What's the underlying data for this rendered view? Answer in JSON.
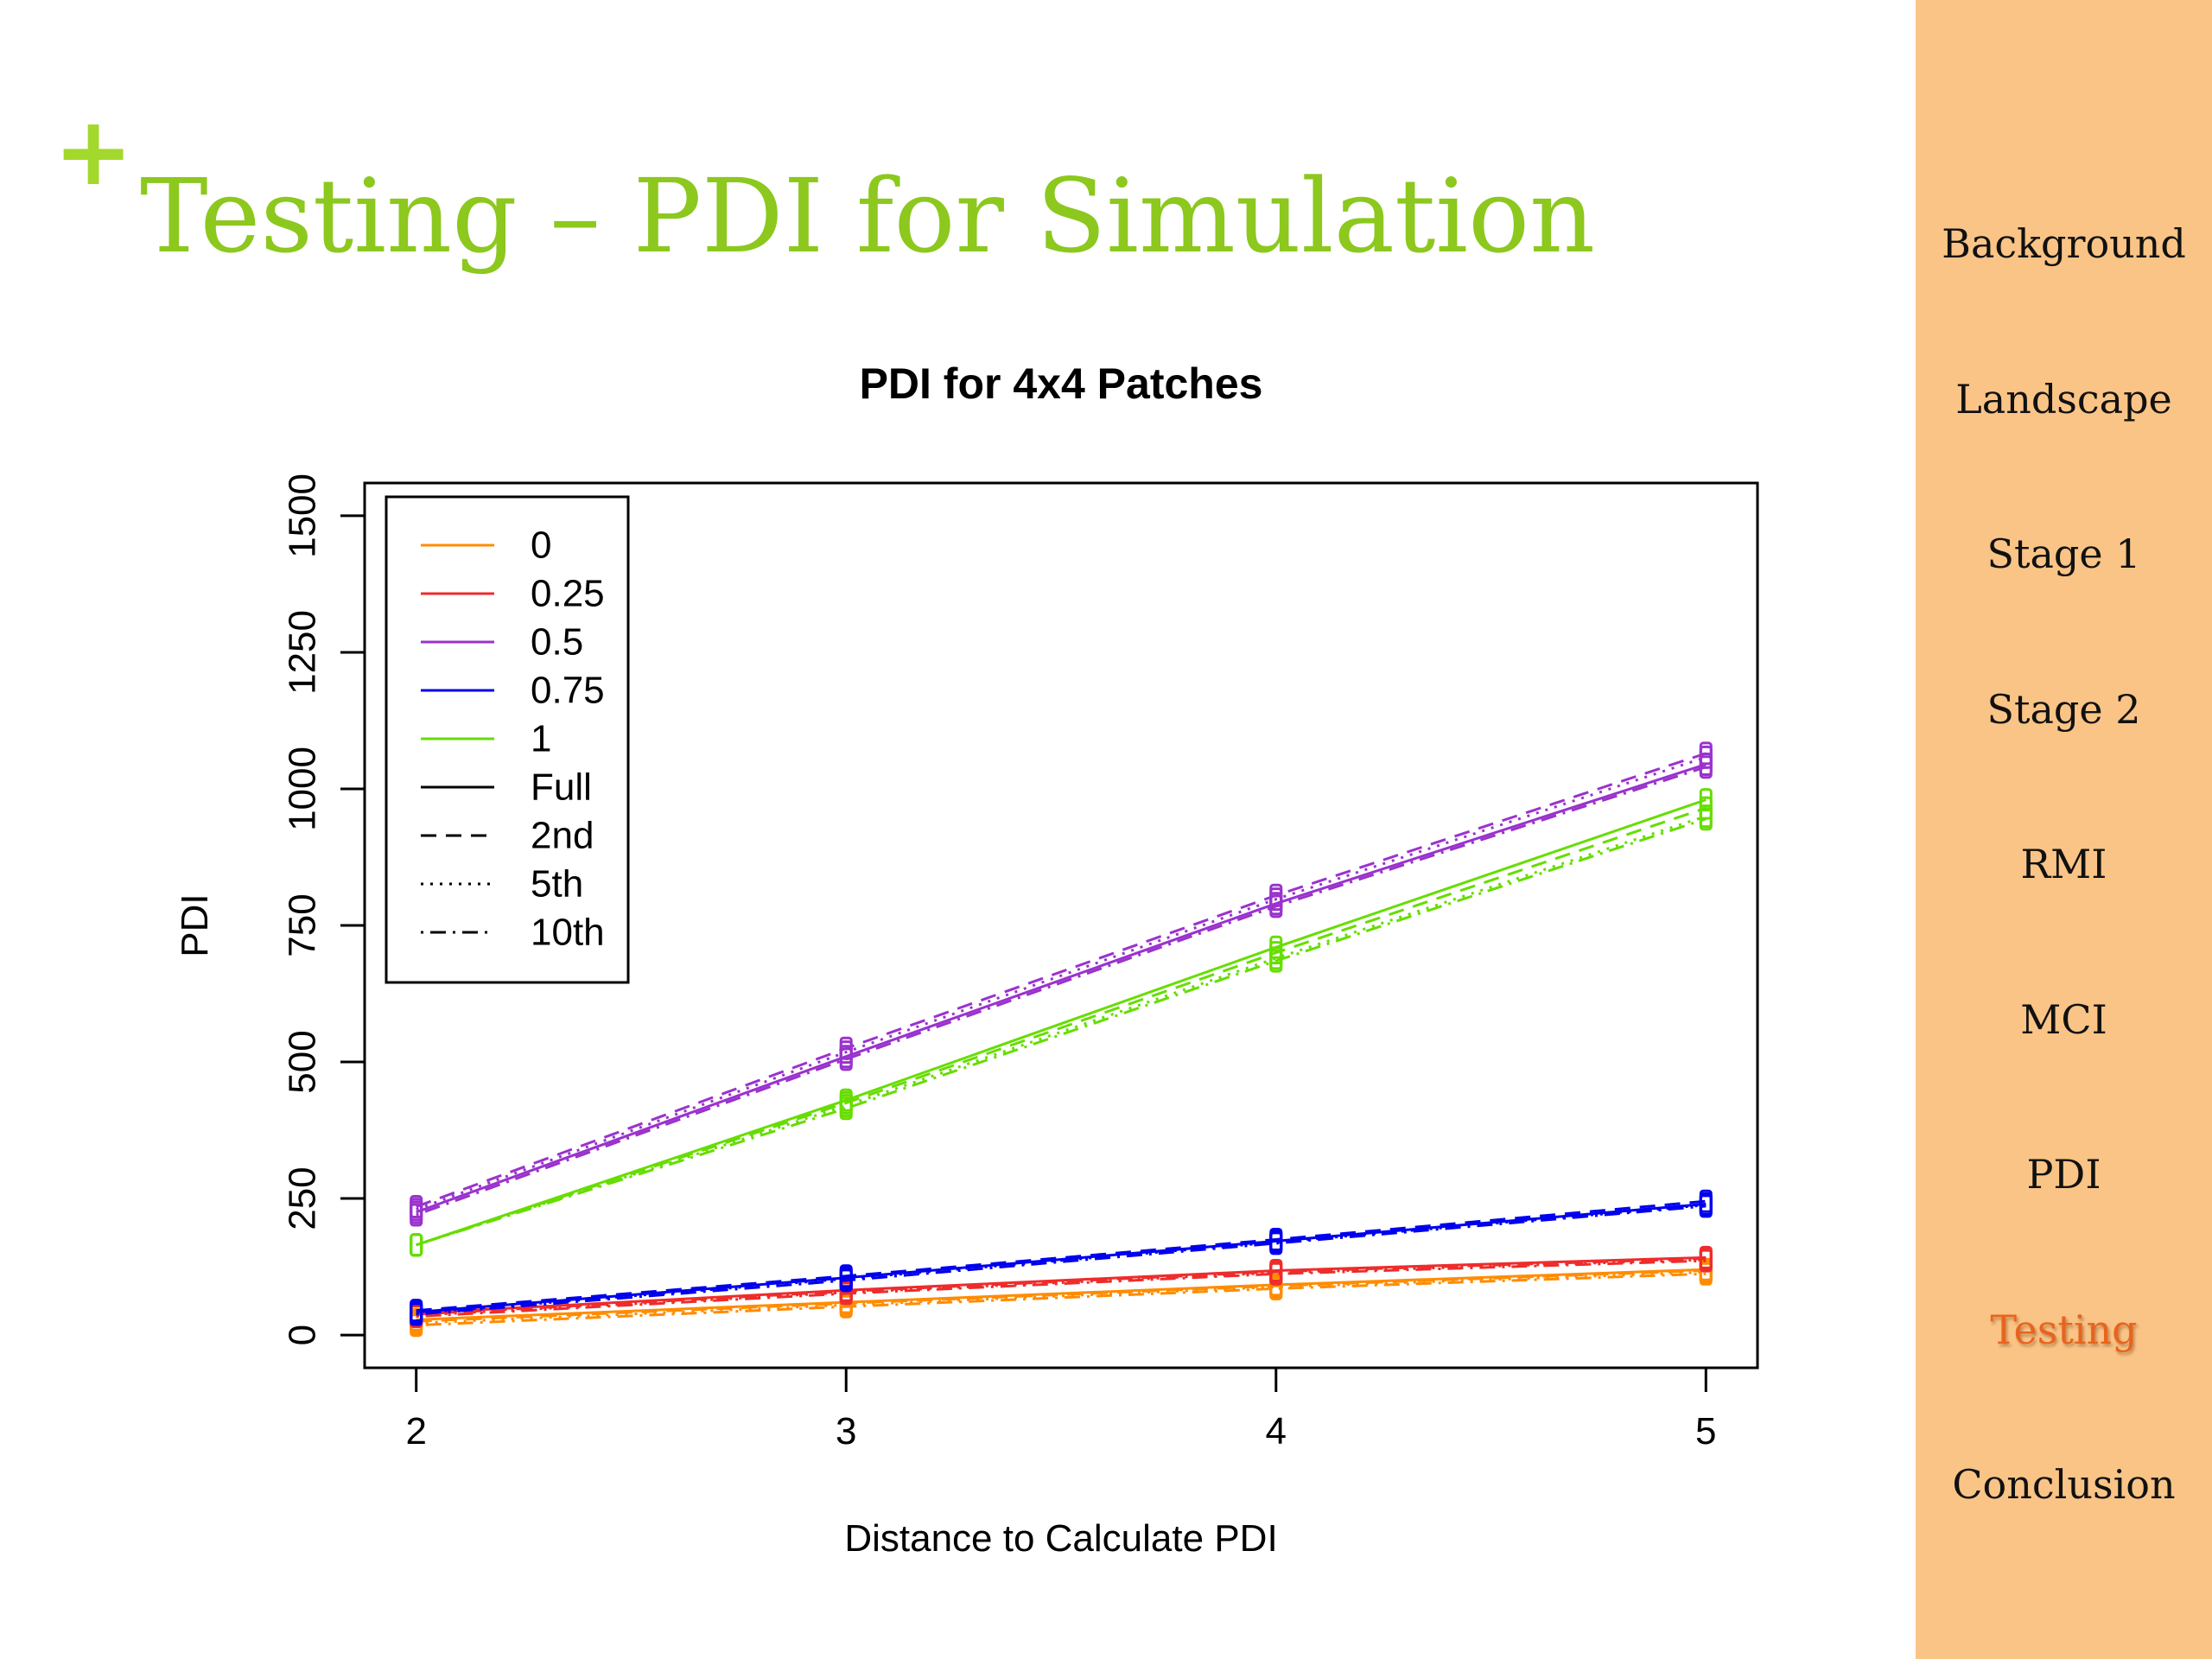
{
  "slide": {
    "marker": "+",
    "title": "Testing – PDI for Simulation"
  },
  "nav": {
    "items": [
      {
        "label": "Background",
        "active": false
      },
      {
        "label": "Landscape",
        "active": false
      },
      {
        "label": "Stage 1",
        "active": false
      },
      {
        "label": "Stage 2",
        "active": false
      },
      {
        "label": "RMI",
        "active": false
      },
      {
        "label": "MCI",
        "active": false
      },
      {
        "label": "PDI",
        "active": false
      },
      {
        "label": "Testing",
        "active": true
      },
      {
        "label": "Conclusion",
        "active": false
      }
    ],
    "active_color": "#e8641e",
    "background": "#f9c486"
  },
  "accent_color": "#8cc81e",
  "chart_data": {
    "type": "line",
    "title": "PDI for 4x4 Patches",
    "xlabel": "Distance to Calculate PDI",
    "ylabel": "PDI",
    "x": [
      2,
      3,
      4,
      5
    ],
    "xticks": [
      "2",
      "3",
      "4",
      "5"
    ],
    "yticks": [
      "0",
      "250",
      "500",
      "750",
      "1000",
      "1250",
      "1500"
    ],
    "ytick_values": [
      0,
      250,
      500,
      750,
      1000,
      1250,
      1500
    ],
    "xlim": [
      1.88,
      5.12
    ],
    "ylim": [
      -60,
      1560
    ],
    "grid": false,
    "legend_position": "top-left",
    "color_legend": [
      {
        "label": "0",
        "color": "#ff8c00"
      },
      {
        "label": "0.25",
        "color": "#ee2c2c"
      },
      {
        "label": "0.5",
        "color": "#9a32cd"
      },
      {
        "label": "0.75",
        "color": "#0000ee"
      },
      {
        "label": "1",
        "color": "#66dd00"
      }
    ],
    "style_legend": [
      {
        "label": "Full",
        "dash": "solid"
      },
      {
        "label": "2nd",
        "dash": "dashed"
      },
      {
        "label": "5th",
        "dash": "dotted"
      },
      {
        "label": "10th",
        "dash": "dotdash"
      }
    ],
    "series": [
      {
        "group": "0",
        "style": "Full",
        "color": "#ff8c00",
        "dash": "solid",
        "values": [
          28,
          60,
          92,
          120
        ]
      },
      {
        "group": "0",
        "style": "2nd",
        "color": "#ff8c00",
        "dash": "dashed",
        "values": [
          25,
          58,
          90,
          118
        ]
      },
      {
        "group": "0",
        "style": "5th",
        "color": "#ff8c00",
        "dash": "dotted",
        "values": [
          22,
          55,
          88,
          115
        ]
      },
      {
        "group": "0",
        "style": "10th",
        "color": "#ff8c00",
        "dash": "dotdash",
        "values": [
          18,
          52,
          85,
          112
        ]
      },
      {
        "group": "0.25",
        "style": "Full",
        "color": "#ee2c2c",
        "dash": "solid",
        "values": [
          40,
          82,
          118,
          142
        ]
      },
      {
        "group": "0.25",
        "style": "2nd",
        "color": "#ee2c2c",
        "dash": "dashed",
        "values": [
          38,
          80,
          116,
          140
        ]
      },
      {
        "group": "0.25",
        "style": "5th",
        "color": "#ee2c2c",
        "dash": "dotted",
        "values": [
          36,
          78,
          114,
          138
        ]
      },
      {
        "group": "0.25",
        "style": "10th",
        "color": "#ee2c2c",
        "dash": "dotdash",
        "values": [
          34,
          76,
          112,
          136
        ]
      },
      {
        "group": "0.5",
        "style": "Full",
        "color": "#9a32cd",
        "dash": "solid",
        "values": [
          225,
          510,
          790,
          1045
        ]
      },
      {
        "group": "0.5",
        "style": "2nd",
        "color": "#9a32cd",
        "dash": "dashed",
        "values": [
          235,
          525,
          805,
          1065
        ]
      },
      {
        "group": "0.5",
        "style": "5th",
        "color": "#9a32cd",
        "dash": "dotted",
        "values": [
          230,
          518,
          798,
          1058
        ]
      },
      {
        "group": "0.5",
        "style": "10th",
        "color": "#9a32cd",
        "dash": "dotdash",
        "values": [
          220,
          505,
          785,
          1040
        ]
      },
      {
        "group": "0.75",
        "style": "Full",
        "color": "#0000ee",
        "dash": "solid",
        "values": [
          42,
          105,
          172,
          240
        ]
      },
      {
        "group": "0.75",
        "style": "2nd",
        "color": "#0000ee",
        "dash": "dashed",
        "values": [
          45,
          108,
          175,
          245
        ]
      },
      {
        "group": "0.75",
        "style": "5th",
        "color": "#0000ee",
        "dash": "dotted",
        "values": [
          40,
          103,
          170,
          238
        ]
      },
      {
        "group": "0.75",
        "style": "10th",
        "color": "#0000ee",
        "dash": "dotdash",
        "values": [
          38,
          100,
          168,
          236
        ]
      },
      {
        "group": "1",
        "style": "Full",
        "color": "#66dd00",
        "dash": "solid",
        "values": [
          165,
          430,
          710,
          980
        ]
      },
      {
        "group": "1",
        "style": "2nd",
        "color": "#66dd00",
        "dash": "dashed",
        "values": [
          165,
          425,
          700,
          965
        ]
      },
      {
        "group": "1",
        "style": "5th",
        "color": "#66dd00",
        "dash": "dotted",
        "values": [
          165,
          420,
          690,
          950
        ]
      },
      {
        "group": "1",
        "style": "10th",
        "color": "#66dd00",
        "dash": "dotdash",
        "values": [
          165,
          415,
          685,
          945
        ]
      }
    ]
  }
}
